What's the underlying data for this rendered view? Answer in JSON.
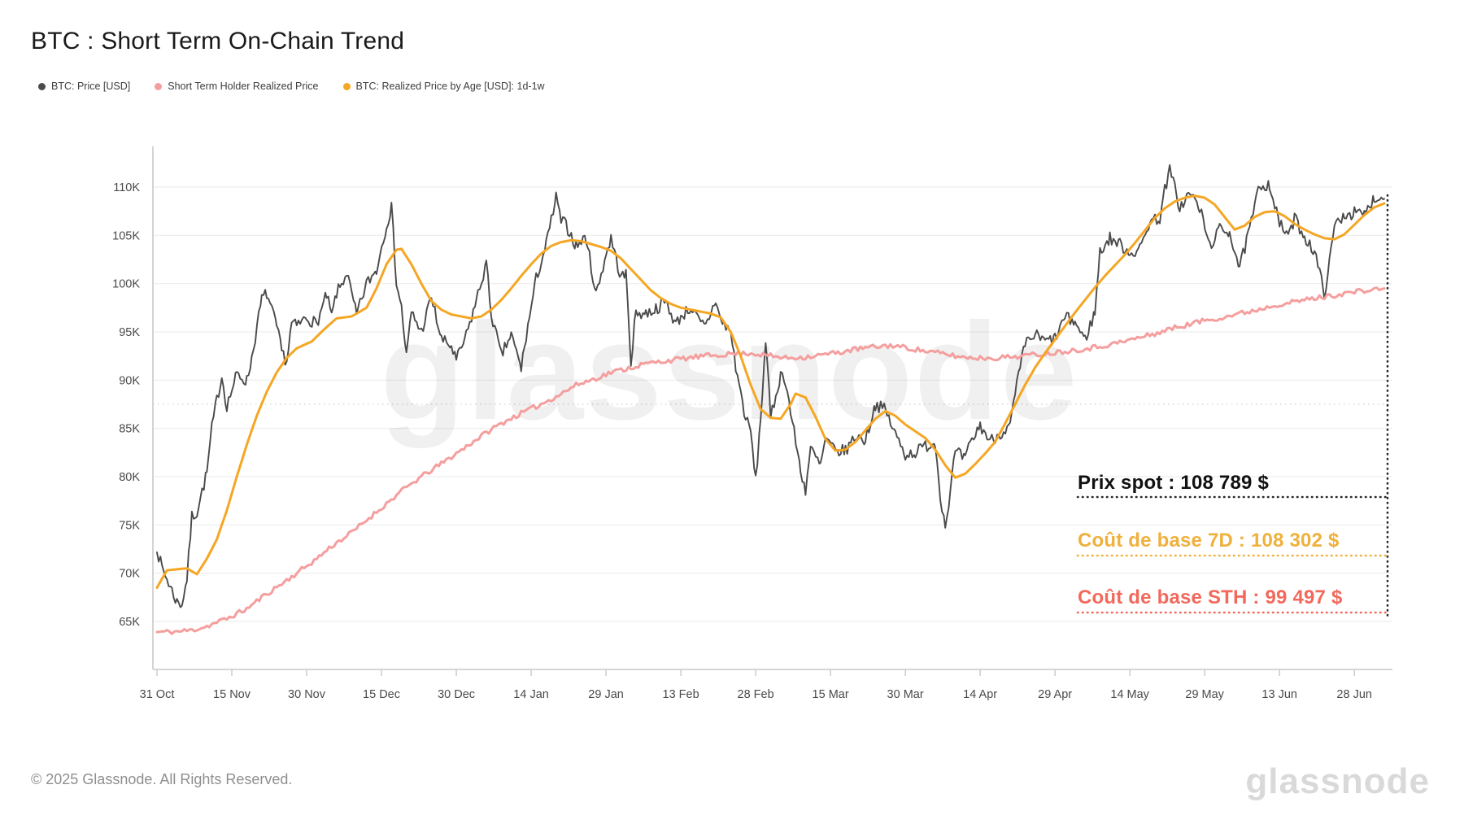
{
  "title": "BTC : Short Term On-Chain Trend",
  "legend": [
    {
      "label": "BTC: Price [USD]",
      "color": "#4a4a4a"
    },
    {
      "label": "Short Term Holder Realized Price",
      "color": "#F59E9E"
    },
    {
      "label": "BTC: Realized Price by Age [USD]: 1d-1w",
      "color": "#F5A623"
    }
  ],
  "watermark": "glassnode",
  "footer": {
    "copyright": "© 2025 Glassnode. All Rights Reserved.",
    "logo": "glassnode"
  },
  "annotations": {
    "spot": {
      "label": "Prix spot : 108 789 $",
      "value": 108789,
      "color": "#111111"
    },
    "cb7d": {
      "label": "Coût de base 7D : 108 302 $",
      "value": 108302,
      "color": "#F0B03C"
    },
    "cbsth": {
      "label": "Coût de base STH : 99 497 $",
      "value": 99497,
      "color": "#F2695C"
    }
  },
  "chart_data": {
    "type": "line",
    "title": "BTC : Short Term On-Chain Trend",
    "x_unit": "days since 31 Oct 2024",
    "xlim_days": [
      0,
      246
    ],
    "ylim": [
      62500,
      114200
    ],
    "grid": "horizontal",
    "legend_position": "top-left",
    "minor_dotted_gridline_value": 87500,
    "y_ticks": [
      {
        "value": 65000,
        "label": "65K"
      },
      {
        "value": 70000,
        "label": "70K"
      },
      {
        "value": 75000,
        "label": "75K"
      },
      {
        "value": 80000,
        "label": "80K"
      },
      {
        "value": 85000,
        "label": "85K"
      },
      {
        "value": 90000,
        "label": "90K"
      },
      {
        "value": 95000,
        "label": "95K"
      },
      {
        "value": 100000,
        "label": "100K"
      },
      {
        "value": 105000,
        "label": "105K"
      },
      {
        "value": 110000,
        "label": "110K"
      }
    ],
    "x_ticks": [
      {
        "day": 0,
        "label": "31 Oct"
      },
      {
        "day": 15,
        "label": "15 Nov"
      },
      {
        "day": 30,
        "label": "30 Nov"
      },
      {
        "day": 45,
        "label": "15 Dec"
      },
      {
        "day": 60,
        "label": "30 Dec"
      },
      {
        "day": 75,
        "label": "14 Jan"
      },
      {
        "day": 90,
        "label": "29 Jan"
      },
      {
        "day": 105,
        "label": "13 Feb"
      },
      {
        "day": 120,
        "label": "28 Feb"
      },
      {
        "day": 135,
        "label": "15 Mar"
      },
      {
        "day": 150,
        "label": "30 Mar"
      },
      {
        "day": 165,
        "label": "14 Apr"
      },
      {
        "day": 180,
        "label": "29 Apr"
      },
      {
        "day": 195,
        "label": "14 May"
      },
      {
        "day": 210,
        "label": "29 May"
      },
      {
        "day": 225,
        "label": "13 Jun"
      },
      {
        "day": 240,
        "label": "28 Jun"
      }
    ],
    "series": [
      {
        "name": "BTC: Price [USD]",
        "color": "#4a4a4a",
        "last_value": 108789,
        "x": [
          0,
          1,
          2,
          3,
          4,
          5,
          6,
          7,
          8,
          10,
          11,
          12,
          13,
          14,
          16,
          18,
          19,
          21,
          22,
          24,
          25,
          26,
          27,
          28,
          30,
          32,
          34,
          35,
          36,
          37,
          38,
          40,
          42,
          44,
          46,
          47,
          48,
          49,
          50,
          51,
          53,
          55,
          57,
          59,
          60,
          62,
          64,
          66,
          67,
          69,
          71,
          73,
          74,
          76,
          78,
          80,
          81,
          82,
          84,
          86,
          88,
          90,
          91,
          93,
          94,
          95,
          96,
          98,
          100,
          102,
          104,
          105,
          107,
          109,
          110,
          112,
          113,
          115,
          116,
          117,
          118,
          119,
          120,
          121,
          122,
          123,
          125,
          126,
          127,
          129,
          130,
          131,
          133,
          134,
          136,
          138,
          140,
          142,
          144,
          146,
          148,
          150,
          152,
          154,
          156,
          157,
          158,
          159,
          160,
          162,
          163,
          165,
          167,
          169,
          171,
          172,
          173,
          174,
          176,
          178,
          180,
          182,
          184,
          186,
          188,
          189,
          191,
          193,
          195,
          197,
          199,
          201,
          202,
          203,
          204,
          205,
          207,
          209,
          211,
          213,
          215,
          217,
          219,
          221,
          223,
          225,
          227,
          228,
          230,
          232,
          234,
          235,
          236,
          238,
          240,
          242,
          244,
          246
        ],
        "y": [
          72300,
          70600,
          69400,
          68200,
          67000,
          66800,
          69400,
          75900,
          76300,
          80400,
          85000,
          88000,
          90400,
          87300,
          90600,
          89900,
          92300,
          98400,
          99000,
          95500,
          93000,
          91900,
          95900,
          95600,
          96500,
          95800,
          98800,
          96600,
          99000,
          99900,
          101200,
          96700,
          100000,
          101400,
          106100,
          107900,
          100200,
          97500,
          92500,
          97000,
          95000,
          98600,
          94200,
          93500,
          92000,
          94600,
          98200,
          102100,
          96900,
          92500,
          94700,
          91200,
          94500,
          100500,
          104000,
          108900,
          106500,
          106100,
          103900,
          104800,
          98900,
          103000,
          104700,
          100600,
          101000,
          92000,
          97000,
          96900,
          97400,
          98100,
          95800,
          96600,
          97500,
          95800,
          95600,
          98300,
          96100,
          95000,
          91400,
          88700,
          86000,
          84700,
          79500,
          86000,
          94200,
          86000,
          90600,
          90000,
          86700,
          80700,
          78600,
          82900,
          81100,
          83900,
          82600,
          82700,
          84200,
          83800,
          87500,
          86900,
          84400,
          82300,
          82500,
          83200,
          83500,
          78200,
          74800,
          78500,
          82600,
          81800,
          83400,
          85300,
          83700,
          84500,
          85200,
          88500,
          91200,
          93700,
          94700,
          94000,
          94300,
          96500,
          96000,
          94200,
          97000,
          103300,
          104700,
          104100,
          103200,
          103500,
          106500,
          106800,
          109700,
          111700,
          110000,
          107800,
          109400,
          107800,
          103900,
          105600,
          105400,
          101600,
          105600,
          110200,
          110300,
          106100,
          105000,
          106800,
          104900,
          103300,
          99000,
          102000,
          106000,
          107200,
          107300,
          107100,
          108900,
          108789
        ]
      },
      {
        "name": "Short Term Holder Realized Price",
        "color": "#F59E9E",
        "last_value": 99497,
        "x": [
          0,
          4,
          7,
          10,
          14,
          18,
          21,
          25,
          28,
          32,
          35,
          39,
          42,
          46,
          49,
          53,
          56,
          60,
          63,
          67,
          70,
          74,
          77,
          81,
          84,
          88,
          91,
          95,
          98,
          102,
          105,
          109,
          112,
          116,
          119,
          123,
          126,
          130,
          133,
          137,
          140,
          144,
          147,
          151,
          154,
          158,
          161,
          165,
          168,
          172,
          175,
          179,
          182,
          186,
          189,
          193,
          196,
          200,
          203,
          207,
          210,
          214,
          217,
          221,
          224,
          228,
          231,
          235,
          238,
          242,
          246
        ],
        "y": [
          63900,
          63950,
          64100,
          64500,
          65300,
          66300,
          67500,
          68900,
          70000,
          71500,
          72800,
          74200,
          75500,
          77200,
          78500,
          80000,
          81000,
          82400,
          83500,
          84900,
          85800,
          86800,
          87500,
          88600,
          89500,
          90200,
          90800,
          91300,
          91700,
          92000,
          92200,
          92450,
          92600,
          92750,
          92800,
          92500,
          92300,
          92400,
          92600,
          92900,
          93200,
          93450,
          93600,
          93300,
          93000,
          92700,
          92400,
          92300,
          92300,
          92450,
          92600,
          92800,
          93000,
          93250,
          93500,
          93900,
          94300,
          94800,
          95300,
          95800,
          96200,
          96550,
          96900,
          97350,
          97800,
          98100,
          98400,
          98700,
          99000,
          99250,
          99497
        ]
      },
      {
        "name": "BTC: Realized Price by Age [USD]: 1d-1w",
        "color": "#F5A623",
        "last_value": 108302,
        "x": [
          0,
          2,
          6,
          8,
          10,
          12,
          14,
          16,
          18,
          20,
          22,
          24,
          26,
          28,
          31,
          34,
          36,
          39,
          42,
          44,
          46,
          48,
          49,
          51,
          53,
          55,
          57,
          59,
          61,
          63,
          65,
          67,
          69,
          71,
          73,
          75,
          77,
          79,
          81,
          83,
          85,
          87,
          89,
          91,
          93,
          95,
          97,
          99,
          101,
          103,
          105,
          107,
          109,
          111,
          113,
          115,
          117,
          119,
          121,
          123,
          125,
          127,
          128,
          130,
          132,
          134,
          136,
          138,
          140,
          142,
          144,
          146,
          148,
          150,
          152,
          154,
          156,
          158,
          160,
          162,
          164,
          166,
          168,
          170,
          172,
          174,
          176,
          178,
          180,
          182,
          184,
          186,
          188,
          190,
          192,
          194,
          196,
          198,
          200,
          202,
          204,
          206,
          208,
          210,
          212,
          214,
          216,
          218,
          220,
          222,
          224,
          226,
          228,
          230,
          232,
          234,
          236,
          238,
          240,
          242,
          244,
          246
        ],
        "y": [
          68500,
          70300,
          70500,
          69900,
          71500,
          73500,
          76500,
          80000,
          83300,
          86300,
          88800,
          90800,
          92300,
          93300,
          94000,
          95500,
          96400,
          96600,
          97500,
          99500,
          102000,
          103500,
          103600,
          102000,
          100000,
          98200,
          97300,
          96800,
          96600,
          96400,
          96600,
          97300,
          98300,
          99500,
          100800,
          102000,
          103100,
          103900,
          104300,
          104500,
          104400,
          104100,
          103800,
          103400,
          102600,
          101500,
          100400,
          99300,
          98500,
          97900,
          97500,
          97300,
          97100,
          96900,
          96500,
          95000,
          92500,
          89500,
          87000,
          86100,
          86000,
          87500,
          88600,
          88200,
          86200,
          83900,
          82700,
          82800,
          83600,
          84800,
          86000,
          86800,
          86300,
          85400,
          84700,
          84000,
          82800,
          81200,
          79900,
          80300,
          81300,
          82400,
          83600,
          85500,
          87500,
          89500,
          91300,
          92800,
          94200,
          95600,
          97000,
          98300,
          99600,
          100800,
          101900,
          103000,
          104200,
          105500,
          106800,
          107800,
          108500,
          108900,
          109100,
          108900,
          108200,
          106900,
          105600,
          106000,
          106900,
          107400,
          107500,
          107000,
          106200,
          105600,
          105100,
          104700,
          104600,
          105100,
          106100,
          107100,
          107900,
          108302
        ]
      }
    ]
  }
}
